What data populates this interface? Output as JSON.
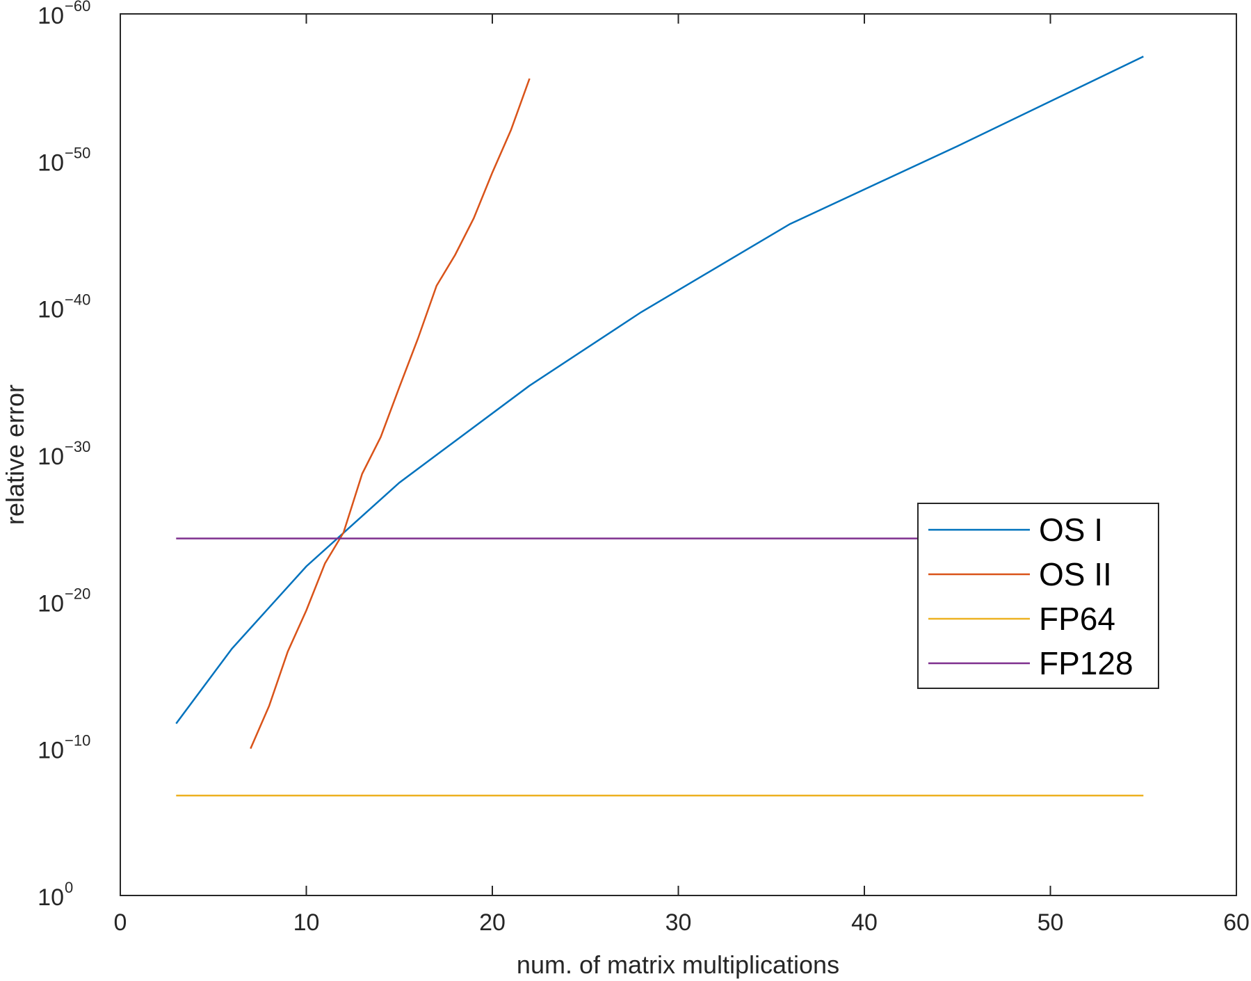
{
  "chart_data": {
    "type": "line",
    "xlabel": "num. of matrix multiplications",
    "ylabel": "relative error",
    "xlim": [
      0,
      60
    ],
    "ylim_exponent": [
      -60,
      0
    ],
    "yscale": "log",
    "xticks": [
      0,
      10,
      20,
      30,
      40,
      50,
      60
    ],
    "yticks_exponent": [
      0,
      -10,
      -20,
      -30,
      -40,
      -50,
      -60
    ],
    "ytick_base": "10",
    "grid": false,
    "legend_position": "right",
    "series": [
      {
        "name": "OS I",
        "color": "#0072BD",
        "x": [
          3,
          6,
          10,
          15,
          22,
          28,
          36,
          45,
          55
        ],
        "y_exponent": [
          -11.7,
          -16.8,
          -22.4,
          -28.1,
          -34.7,
          -39.7,
          -45.7,
          -51.0,
          -57.1
        ]
      },
      {
        "name": "OS II",
        "color": "#D95319",
        "x": [
          7,
          8,
          9,
          10,
          11,
          12,
          13,
          14,
          15,
          16,
          17,
          18,
          19,
          20,
          21,
          22
        ],
        "y_exponent": [
          -10,
          -12.9,
          -16.6,
          -19.4,
          -22.6,
          -24.7,
          -28.7,
          -31.2,
          -34.6,
          -37.9,
          -41.5,
          -43.6,
          -46.1,
          -49.2,
          -52.1,
          -55.6
        ]
      },
      {
        "name": "FP64",
        "color": "#EDB120",
        "x": [
          3,
          55
        ],
        "y_exponent": [
          -6.8,
          -6.8
        ]
      },
      {
        "name": "FP128",
        "color": "#7E2F8E",
        "x": [
          3,
          55
        ],
        "y_exponent": [
          -24.3,
          -24.3
        ]
      }
    ]
  }
}
